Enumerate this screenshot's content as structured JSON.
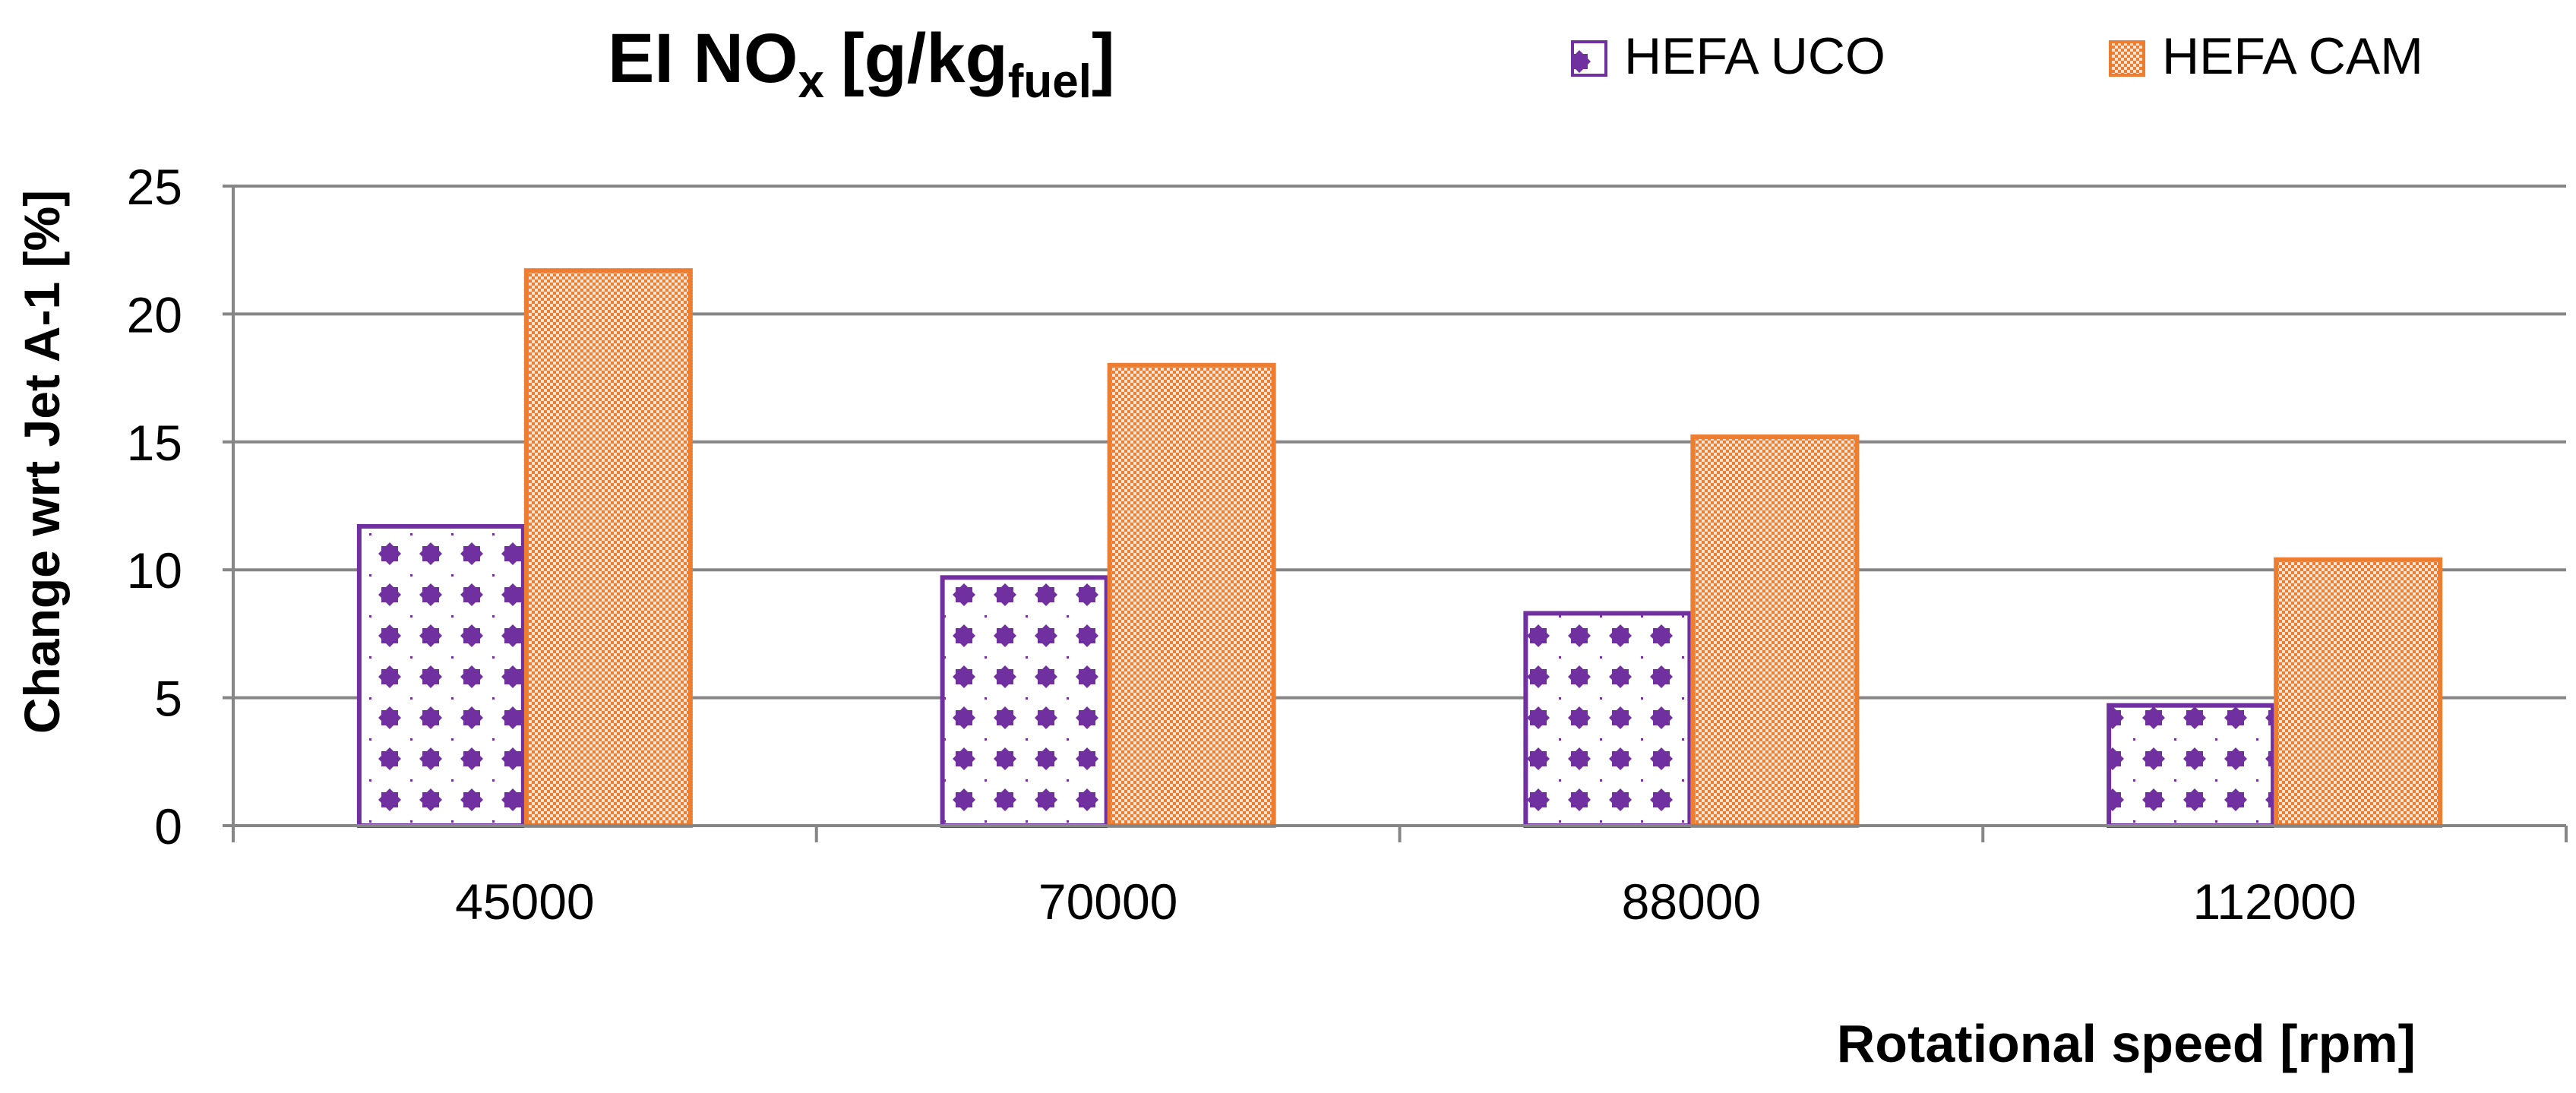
{
  "chart_data": {
    "type": "bar",
    "title": "EI NO",
    "title_sub_x": "x",
    "title_bracket": "[g/kg",
    "title_sub_fuel": "fuel",
    "title_close": "]",
    "categories": [
      "45000",
      "70000",
      "88000",
      "112000"
    ],
    "series": [
      {
        "name": "HEFA UCO",
        "values": [
          11.7,
          9.7,
          8.3,
          4.7
        ],
        "color": "#7030A0",
        "pattern": "diamond-dots"
      },
      {
        "name": "HEFA CAM",
        "values": [
          21.7,
          18.0,
          15.2,
          10.4
        ],
        "color": "#ED7D31",
        "pattern": "fine-checker"
      }
    ],
    "xlabel": "Rotational speed [rpm]",
    "ylabel": "Change wrt Jet A-1 [%]",
    "ylim": [
      0,
      25
    ],
    "yticks": [
      0,
      5,
      10,
      15,
      20,
      25
    ],
    "grid": true,
    "legend_position": "top-right"
  }
}
